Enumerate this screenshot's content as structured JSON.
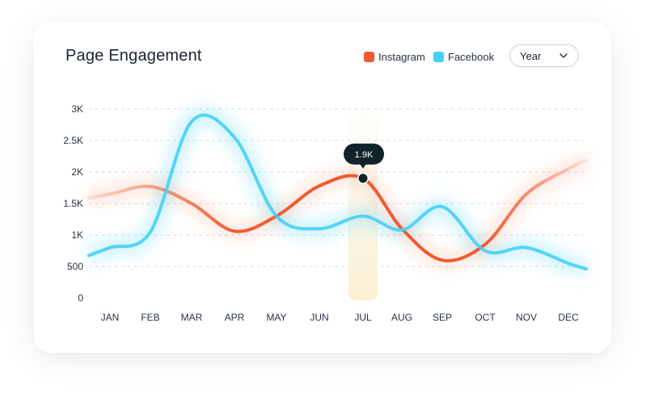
{
  "title": "Page Engagement",
  "legend": [
    {
      "label": "Instagram",
      "color": "#f25a30"
    },
    {
      "label": "Facebook",
      "color": "#45d0f5"
    }
  ],
  "dropdown": {
    "selected": "Year"
  },
  "tooltip": {
    "label": "1.9K",
    "month": "JUL"
  },
  "chart_data": {
    "type": "line",
    "title": "Page Engagement",
    "categories": [
      "JAN",
      "FEB",
      "MAR",
      "APR",
      "MAY",
      "JUN",
      "JUL",
      "AUG",
      "SEP",
      "OCT",
      "NOV",
      "DEC"
    ],
    "y_tick_labels": [
      "0",
      "500",
      "1K",
      "1.5K",
      "2K",
      "2.5K",
      "3K"
    ],
    "y_ticks": [
      0,
      500,
      1000,
      1500,
      2000,
      2500,
      3000
    ],
    "ylim": [
      0,
      3000
    ],
    "grid": true,
    "legend_position": "top-right",
    "series": [
      {
        "name": "Instagram",
        "color": "#f25a30",
        "values": [
          1650,
          1770,
          1500,
          1060,
          1300,
          1780,
          1900,
          1100,
          600,
          850,
          1650,
          2050
        ]
      },
      {
        "name": "Facebook",
        "color": "#45d0f5",
        "values": [
          800,
          1050,
          2800,
          2550,
          1300,
          1100,
          1300,
          1080,
          1450,
          750,
          800,
          550
        ]
      }
    ],
    "highlight": {
      "category": "JUL",
      "series": "Instagram",
      "label": "1.9K"
    }
  }
}
